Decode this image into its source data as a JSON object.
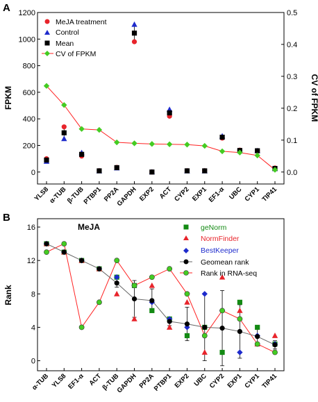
{
  "colors": {
    "red": "#e8242b",
    "blue": "#1e2bcc",
    "black": "#000000",
    "green": "#44cc22",
    "dark_green": "#138a13",
    "line_red": "#ff2222",
    "line_gray": "#666666"
  },
  "chart_data": [
    {
      "panel": "A",
      "type": "scatter",
      "ylabel": "FPKM",
      "y2label": "CV of FPKM",
      "ylim": [
        -90,
        1200
      ],
      "y2lim": [
        -0.0375,
        0.5
      ],
      "yticks": [
        "0",
        "200",
        "400",
        "600",
        "800",
        "1000",
        "1200"
      ],
      "y2ticks": [
        "0.0",
        "0.1",
        "0.2",
        "0.3",
        "0.4",
        "0.5"
      ],
      "categories": [
        "YLS8",
        "α-TUB",
        "β-TUB",
        "PTBP1",
        "PP2A",
        "GAPDH",
        "EXP2",
        "ACT",
        "CYP2",
        "EXP1",
        "EF1-α",
        "UBC",
        "CYP1",
        "TIP41"
      ],
      "legend": "top-left",
      "series": [
        {
          "name": "MeJA treatment",
          "marker": "circle",
          "values": [
            100,
            340,
            120,
            10,
            35,
            980,
            0,
            420,
            10,
            10,
            255,
            165,
            160,
            30
          ]
        },
        {
          "name": "Control",
          "marker": "triangle",
          "values": [
            80,
            250,
            145,
            8,
            30,
            1110,
            0,
            470,
            8,
            8,
            270,
            160,
            160,
            25
          ]
        },
        {
          "name": "Mean",
          "marker": "square",
          "values": [
            90,
            295,
            133,
            9,
            33,
            1045,
            0,
            445,
            9,
            9,
            262,
            162,
            160,
            27
          ]
        },
        {
          "name": "CV of FPKM",
          "marker": "diamond-line",
          "axis": "right",
          "values": [
            0.27,
            0.21,
            0.135,
            0.132,
            0.093,
            0.09,
            0.088,
            0.087,
            0.086,
            0.082,
            0.065,
            0.061,
            0.052,
            0.007
          ]
        }
      ],
      "error_bars": {
        "Mean": [
          10,
          45,
          12,
          2,
          3,
          65,
          0,
          25,
          2,
          2,
          8,
          5,
          5,
          3
        ]
      }
    },
    {
      "panel": "B",
      "type": "scatter",
      "subtitle": "MeJA",
      "ylabel": "Rank",
      "ylim": [
        -1.2,
        17
      ],
      "yticks": [
        "0",
        "4",
        "8",
        "12",
        "16"
      ],
      "categories": [
        "α-TUB",
        "YLS8",
        "EF1-α",
        "ACT",
        "β-TUB",
        "GAPDH",
        "PP2A",
        "PTBP1",
        "EXP2",
        "UBC",
        "CYP2",
        "EXP1",
        "CYP1",
        "TIP41"
      ],
      "legend": "top-right",
      "series": [
        {
          "name": "geNorm",
          "marker": "square",
          "values": [
            14,
            13,
            12,
            11,
            10,
            9,
            6,
            5,
            3,
            4,
            1,
            7,
            4,
            2
          ]
        },
        {
          "name": "NormFinder",
          "marker": "triangle",
          "values": [
            14,
            13,
            12,
            11,
            8,
            5,
            9,
            4,
            7,
            1,
            10,
            6,
            2,
            3
          ]
        },
        {
          "name": "BestKeeper",
          "marker": "diamond",
          "values": [
            14,
            13,
            12,
            11,
            10,
            9,
            7,
            5,
            4,
            8,
            6,
            1,
            3,
            2
          ]
        },
        {
          "name": "Geomean rank",
          "marker": "circle-line",
          "values": [
            14,
            13,
            12,
            11,
            9.3,
            7.4,
            7.2,
            4.7,
            4.4,
            4.0,
            3.9,
            3.5,
            2.9,
            1.9
          ]
        },
        {
          "name": "Rank in RNA-seq",
          "marker": "circle-line",
          "values": [
            13,
            14,
            4,
            7,
            12,
            9,
            10,
            11,
            8,
            3,
            6,
            5,
            2,
            1
          ]
        }
      ],
      "error_bars": {
        "Geomean rank": [
          0.2,
          0.2,
          0.2,
          0.2,
          0.5,
          2.2,
          1.4,
          0.5,
          2.0,
          4.0,
          4.5,
          3.2,
          1.0,
          0.5
        ]
      }
    }
  ]
}
